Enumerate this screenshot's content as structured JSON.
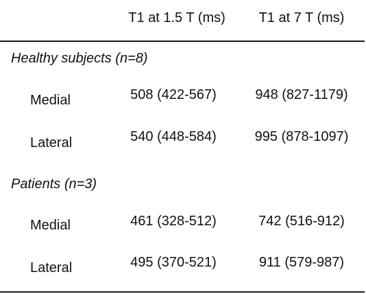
{
  "header": {
    "col1": "T1 at 1.5 T (ms)",
    "col2": "T1 at 7 T (ms)"
  },
  "groups": [
    {
      "title": "Healthy subjects (n=8)",
      "rows": [
        {
          "label": "Medial",
          "t1_15": "508 (422-567)",
          "t1_7": "948 (827-1179)"
        },
        {
          "label": "Lateral",
          "t1_15": "540 (448-584)",
          "t1_7": "995 (878-1097)"
        }
      ]
    },
    {
      "title": "Patients (n=3)",
      "rows": [
        {
          "label": "Medial",
          "t1_15": "461 (328-512)",
          "t1_7": "742 (516-912)"
        },
        {
          "label": "Lateral",
          "t1_15": "495 (370-521)",
          "t1_7": "911 (579-987)"
        }
      ]
    }
  ]
}
